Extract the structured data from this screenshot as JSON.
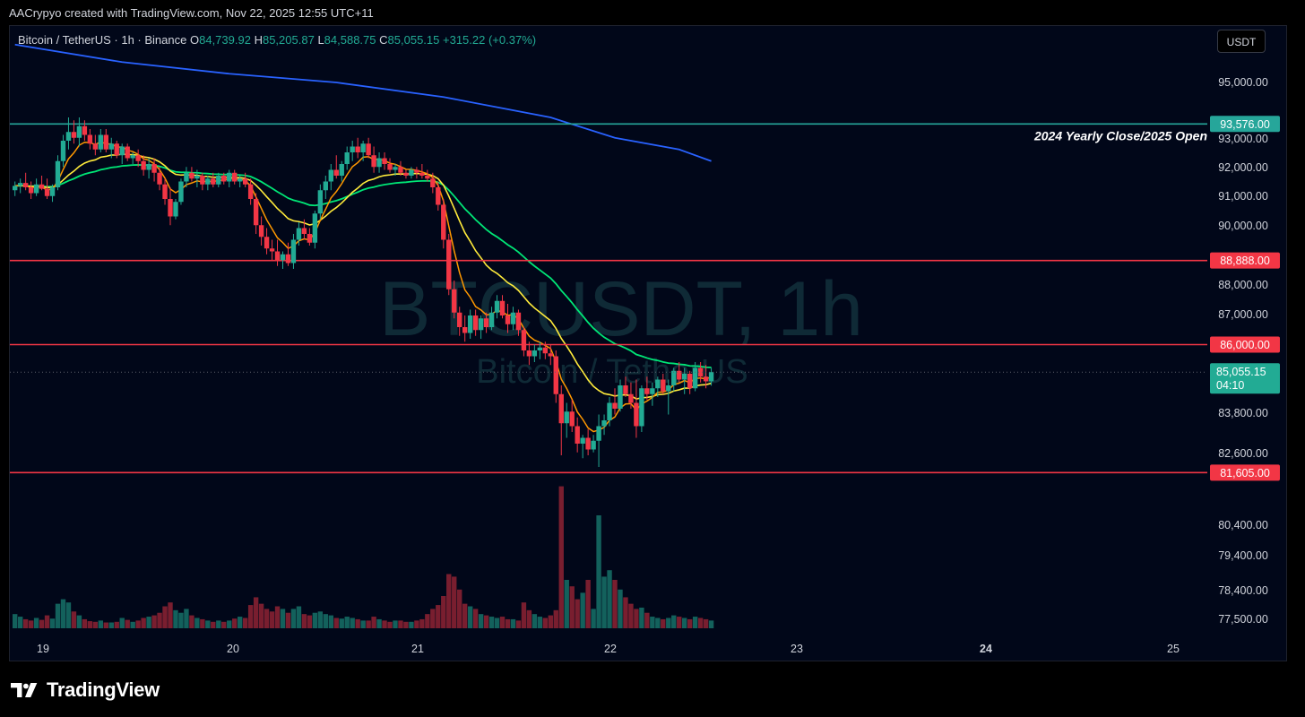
{
  "header": {
    "attribution": "AACrypyo created with TradingView.com, Nov 22, 2025 12:55 UTC+11"
  },
  "legend": {
    "symbol": "Bitcoin / TetherUS · 1h · Binance",
    "open_label": "O",
    "open": "84,739.92",
    "high_label": "H",
    "high": "85,205.87",
    "low_label": "L",
    "low": "84,588.75",
    "close_label": "C",
    "close": "85,055.15",
    "change": "+315.22 (+0.37%)"
  },
  "currency_button": "USDT",
  "watermark": {
    "main": "BTCUSDT, 1h",
    "sub": "Bitcoin / TetherUS"
  },
  "footer": {
    "brand": "TradingView",
    "logo_icon": "tradingview-logo-icon"
  },
  "colors": {
    "up": "#22ab94",
    "down": "#f23645",
    "level_line": "#f23645",
    "yearly_line": "#26a69a",
    "ema_fast": "#ff9800",
    "ema_mid": "#ffeb3b",
    "ema_slow": "#00e676",
    "ema_long": "#2962ff",
    "background": "#010719"
  },
  "chart_data": {
    "type": "candlestick",
    "symbol": "BTCUSDT",
    "interval": "1h",
    "x_ticks": [
      "19",
      "20",
      "21",
      "22",
      "23",
      "24",
      "25"
    ],
    "y_ticks": [
      "95,000.00",
      "93,000.00",
      "92,000.00",
      "91,000.00",
      "90,000.00",
      "88,000.00",
      "87,000.00",
      "83,800.00",
      "82,600.00",
      "80,400.00",
      "79,400.00",
      "78,400.00",
      "77,500.00"
    ],
    "ylim": [
      77000,
      96000
    ],
    "grid": false,
    "horizontal_levels": [
      {
        "value": 93576,
        "label": "93,576.00",
        "annotation": "2024 Yearly Close/2025 Open",
        "kind": "yearly"
      },
      {
        "value": 88888,
        "label": "88,888.00",
        "kind": "resistance"
      },
      {
        "value": 86000,
        "label": "86,000.00",
        "kind": "resistance"
      },
      {
        "value": 81605,
        "label": "81,605.00",
        "kind": "support"
      }
    ],
    "last_price": {
      "value": 85055.15,
      "label": "85,055.15",
      "countdown": "04:10"
    },
    "candles": [
      {
        "o": 91300,
        "h": 91600,
        "l": 91100,
        "c": 91450,
        "v": 22
      },
      {
        "o": 91450,
        "h": 91700,
        "l": 91200,
        "c": 91550,
        "v": 18
      },
      {
        "o": 91550,
        "h": 91900,
        "l": 91300,
        "c": 91400,
        "v": 14
      },
      {
        "o": 91400,
        "h": 91600,
        "l": 91000,
        "c": 91200,
        "v": 12
      },
      {
        "o": 91200,
        "h": 91700,
        "l": 91100,
        "c": 91500,
        "v": 16
      },
      {
        "o": 91500,
        "h": 91800,
        "l": 91300,
        "c": 91350,
        "v": 13
      },
      {
        "o": 91350,
        "h": 91700,
        "l": 91000,
        "c": 91100,
        "v": 20
      },
      {
        "o": 91100,
        "h": 91500,
        "l": 90900,
        "c": 91400,
        "v": 15
      },
      {
        "o": 91400,
        "h": 92500,
        "l": 91300,
        "c": 92300,
        "v": 38
      },
      {
        "o": 92300,
        "h": 93200,
        "l": 92100,
        "c": 93000,
        "v": 45
      },
      {
        "o": 93000,
        "h": 93800,
        "l": 92700,
        "c": 93300,
        "v": 40
      },
      {
        "o": 93300,
        "h": 93700,
        "l": 92900,
        "c": 93100,
        "v": 26
      },
      {
        "o": 93100,
        "h": 93800,
        "l": 92800,
        "c": 93500,
        "v": 20
      },
      {
        "o": 93500,
        "h": 93700,
        "l": 93000,
        "c": 93200,
        "v": 14
      },
      {
        "o": 93200,
        "h": 93400,
        "l": 92700,
        "c": 92900,
        "v": 11
      },
      {
        "o": 92900,
        "h": 93200,
        "l": 92500,
        "c": 92700,
        "v": 10
      },
      {
        "o": 92700,
        "h": 93400,
        "l": 92600,
        "c": 93200,
        "v": 12
      },
      {
        "o": 93200,
        "h": 93400,
        "l": 92600,
        "c": 92700,
        "v": 9
      },
      {
        "o": 92700,
        "h": 93100,
        "l": 92400,
        "c": 92900,
        "v": 9
      },
      {
        "o": 92900,
        "h": 93000,
        "l": 92400,
        "c": 92500,
        "v": 10
      },
      {
        "o": 92500,
        "h": 92900,
        "l": 92200,
        "c": 92800,
        "v": 16
      },
      {
        "o": 92800,
        "h": 92900,
        "l": 92300,
        "c": 92400,
        "v": 13
      },
      {
        "o": 92400,
        "h": 92600,
        "l": 92200,
        "c": 92500,
        "v": 10
      },
      {
        "o": 92500,
        "h": 92700,
        "l": 92100,
        "c": 92300,
        "v": 12
      },
      {
        "o": 92300,
        "h": 92500,
        "l": 91800,
        "c": 92000,
        "v": 16
      },
      {
        "o": 92000,
        "h": 92400,
        "l": 91700,
        "c": 92200,
        "v": 18
      },
      {
        "o": 92200,
        "h": 92400,
        "l": 91600,
        "c": 91900,
        "v": 20
      },
      {
        "o": 91900,
        "h": 92100,
        "l": 91300,
        "c": 91500,
        "v": 24
      },
      {
        "o": 91500,
        "h": 91700,
        "l": 90800,
        "c": 91000,
        "v": 34
      },
      {
        "o": 91000,
        "h": 91400,
        "l": 90100,
        "c": 90400,
        "v": 40
      },
      {
        "o": 90400,
        "h": 91000,
        "l": 90300,
        "c": 90900,
        "v": 28
      },
      {
        "o": 90900,
        "h": 91700,
        "l": 90800,
        "c": 91600,
        "v": 24
      },
      {
        "o": 91600,
        "h": 92100,
        "l": 91400,
        "c": 91900,
        "v": 30
      },
      {
        "o": 91900,
        "h": 92100,
        "l": 91600,
        "c": 91700,
        "v": 20
      },
      {
        "o": 91700,
        "h": 92000,
        "l": 91400,
        "c": 91800,
        "v": 16
      },
      {
        "o": 91800,
        "h": 91900,
        "l": 91300,
        "c": 91500,
        "v": 14
      },
      {
        "o": 91500,
        "h": 91800,
        "l": 91300,
        "c": 91700,
        "v": 12
      },
      {
        "o": 91700,
        "h": 91900,
        "l": 91400,
        "c": 91500,
        "v": 10
      },
      {
        "o": 91500,
        "h": 91900,
        "l": 91400,
        "c": 91800,
        "v": 12
      },
      {
        "o": 91800,
        "h": 91900,
        "l": 91500,
        "c": 91600,
        "v": 10
      },
      {
        "o": 91600,
        "h": 92000,
        "l": 91400,
        "c": 91900,
        "v": 12
      },
      {
        "o": 91900,
        "h": 92000,
        "l": 91500,
        "c": 91600,
        "v": 15
      },
      {
        "o": 91600,
        "h": 91800,
        "l": 91400,
        "c": 91700,
        "v": 18
      },
      {
        "o": 91700,
        "h": 91900,
        "l": 91400,
        "c": 91500,
        "v": 16
      },
      {
        "o": 91500,
        "h": 91700,
        "l": 90800,
        "c": 91000,
        "v": 36
      },
      {
        "o": 91000,
        "h": 91200,
        "l": 89800,
        "c": 90100,
        "v": 48
      },
      {
        "o": 90100,
        "h": 90400,
        "l": 89400,
        "c": 89700,
        "v": 38
      },
      {
        "o": 89700,
        "h": 90000,
        "l": 89100,
        "c": 89300,
        "v": 30
      },
      {
        "o": 89300,
        "h": 89600,
        "l": 88900,
        "c": 89200,
        "v": 26
      },
      {
        "o": 89200,
        "h": 89600,
        "l": 88700,
        "c": 88900,
        "v": 34
      },
      {
        "o": 88900,
        "h": 89200,
        "l": 88600,
        "c": 89100,
        "v": 30
      },
      {
        "o": 89100,
        "h": 89500,
        "l": 88700,
        "c": 88800,
        "v": 24
      },
      {
        "o": 88800,
        "h": 89800,
        "l": 88600,
        "c": 89600,
        "v": 30
      },
      {
        "o": 89600,
        "h": 90200,
        "l": 89400,
        "c": 90000,
        "v": 34
      },
      {
        "o": 90000,
        "h": 90300,
        "l": 89600,
        "c": 89800,
        "v": 22
      },
      {
        "o": 89800,
        "h": 90000,
        "l": 89400,
        "c": 89500,
        "v": 20
      },
      {
        "o": 89500,
        "h": 90600,
        "l": 89300,
        "c": 90500,
        "v": 24
      },
      {
        "o": 90500,
        "h": 91500,
        "l": 90300,
        "c": 91300,
        "v": 26
      },
      {
        "o": 91300,
        "h": 91800,
        "l": 91000,
        "c": 91600,
        "v": 22
      },
      {
        "o": 91600,
        "h": 92200,
        "l": 91300,
        "c": 92000,
        "v": 20
      },
      {
        "o": 92000,
        "h": 92500,
        "l": 91700,
        "c": 91800,
        "v": 16
      },
      {
        "o": 91800,
        "h": 92300,
        "l": 91600,
        "c": 92200,
        "v": 15
      },
      {
        "o": 92200,
        "h": 92800,
        "l": 92000,
        "c": 92600,
        "v": 18
      },
      {
        "o": 92600,
        "h": 93000,
        "l": 92300,
        "c": 92800,
        "v": 16
      },
      {
        "o": 92800,
        "h": 93100,
        "l": 92400,
        "c": 92600,
        "v": 14
      },
      {
        "o": 92600,
        "h": 93000,
        "l": 92300,
        "c": 92900,
        "v": 12
      },
      {
        "o": 92900,
        "h": 93100,
        "l": 92400,
        "c": 92500,
        "v": 12
      },
      {
        "o": 92500,
        "h": 92800,
        "l": 91900,
        "c": 92100,
        "v": 18
      },
      {
        "o": 92100,
        "h": 92600,
        "l": 91900,
        "c": 92400,
        "v": 14
      },
      {
        "o": 92400,
        "h": 92600,
        "l": 92000,
        "c": 92200,
        "v": 12
      },
      {
        "o": 92200,
        "h": 92400,
        "l": 91900,
        "c": 92000,
        "v": 10
      },
      {
        "o": 92000,
        "h": 92200,
        "l": 91800,
        "c": 92100,
        "v": 12
      },
      {
        "o": 92100,
        "h": 92300,
        "l": 91800,
        "c": 91900,
        "v": 12
      },
      {
        "o": 91900,
        "h": 92000,
        "l": 91700,
        "c": 91800,
        "v": 10
      },
      {
        "o": 91800,
        "h": 92100,
        "l": 91700,
        "c": 92000,
        "v": 10
      },
      {
        "o": 92000,
        "h": 92100,
        "l": 91700,
        "c": 91900,
        "v": 12
      },
      {
        "o": 91900,
        "h": 92200,
        "l": 91700,
        "c": 91800,
        "v": 14
      },
      {
        "o": 91800,
        "h": 92000,
        "l": 91600,
        "c": 91700,
        "v": 22
      },
      {
        "o": 91700,
        "h": 91900,
        "l": 91200,
        "c": 91400,
        "v": 30
      },
      {
        "o": 91400,
        "h": 91600,
        "l": 90600,
        "c": 90800,
        "v": 36
      },
      {
        "o": 90800,
        "h": 91000,
        "l": 89300,
        "c": 89600,
        "v": 50
      },
      {
        "o": 89600,
        "h": 89800,
        "l": 87700,
        "c": 87900,
        "v": 84
      },
      {
        "o": 87900,
        "h": 88200,
        "l": 86900,
        "c": 87100,
        "v": 80
      },
      {
        "o": 87100,
        "h": 87300,
        "l": 86300,
        "c": 86600,
        "v": 60
      },
      {
        "o": 86600,
        "h": 87000,
        "l": 86100,
        "c": 86400,
        "v": 38
      },
      {
        "o": 86400,
        "h": 87200,
        "l": 86200,
        "c": 87000,
        "v": 34
      },
      {
        "o": 87000,
        "h": 87200,
        "l": 86300,
        "c": 86500,
        "v": 30
      },
      {
        "o": 86500,
        "h": 87000,
        "l": 86200,
        "c": 86900,
        "v": 22
      },
      {
        "o": 86900,
        "h": 87100,
        "l": 86400,
        "c": 86600,
        "v": 20
      },
      {
        "o": 86600,
        "h": 87300,
        "l": 86500,
        "c": 87100,
        "v": 18
      },
      {
        "o": 87100,
        "h": 87700,
        "l": 86900,
        "c": 87500,
        "v": 16
      },
      {
        "o": 87500,
        "h": 87700,
        "l": 86900,
        "c": 87000,
        "v": 18
      },
      {
        "o": 87000,
        "h": 87400,
        "l": 86400,
        "c": 86700,
        "v": 14
      },
      {
        "o": 86700,
        "h": 87300,
        "l": 86500,
        "c": 87100,
        "v": 14
      },
      {
        "o": 87100,
        "h": 87200,
        "l": 86300,
        "c": 86500,
        "v": 12
      },
      {
        "o": 86500,
        "h": 86600,
        "l": 85600,
        "c": 85800,
        "v": 40
      },
      {
        "o": 85800,
        "h": 86100,
        "l": 85300,
        "c": 85600,
        "v": 28
      },
      {
        "o": 85600,
        "h": 86000,
        "l": 85400,
        "c": 85800,
        "v": 22
      },
      {
        "o": 85800,
        "h": 86100,
        "l": 85500,
        "c": 85900,
        "v": 18
      },
      {
        "o": 85900,
        "h": 86100,
        "l": 85500,
        "c": 85700,
        "v": 16
      },
      {
        "o": 85700,
        "h": 86000,
        "l": 85300,
        "c": 85600,
        "v": 20
      },
      {
        "o": 85600,
        "h": 85800,
        "l": 84000,
        "c": 84300,
        "v": 28
      },
      {
        "o": 84300,
        "h": 84600,
        "l": 82200,
        "c": 83300,
        "v": 220
      },
      {
        "o": 83300,
        "h": 84000,
        "l": 82800,
        "c": 83700,
        "v": 75
      },
      {
        "o": 83700,
        "h": 84100,
        "l": 83000,
        "c": 83200,
        "v": 65
      },
      {
        "o": 83200,
        "h": 83500,
        "l": 82300,
        "c": 82600,
        "v": 45
      },
      {
        "o": 82600,
        "h": 82900,
        "l": 82100,
        "c": 82800,
        "v": 55
      },
      {
        "o": 82800,
        "h": 83100,
        "l": 82200,
        "c": 82400,
        "v": 75
      },
      {
        "o": 82400,
        "h": 82900,
        "l": 82300,
        "c": 82700,
        "v": 30
      },
      {
        "o": 82700,
        "h": 83600,
        "l": 81800,
        "c": 83200,
        "v": 175
      },
      {
        "o": 83200,
        "h": 83600,
        "l": 82900,
        "c": 83400,
        "v": 80
      },
      {
        "o": 83400,
        "h": 84200,
        "l": 83200,
        "c": 84000,
        "v": 90
      },
      {
        "o": 84000,
        "h": 84500,
        "l": 83600,
        "c": 83800,
        "v": 75
      },
      {
        "o": 83800,
        "h": 84800,
        "l": 83700,
        "c": 84600,
        "v": 60
      },
      {
        "o": 84600,
        "h": 84900,
        "l": 84200,
        "c": 84300,
        "v": 48
      },
      {
        "o": 84300,
        "h": 84700,
        "l": 83800,
        "c": 84000,
        "v": 38
      },
      {
        "o": 84000,
        "h": 84800,
        "l": 82800,
        "c": 83200,
        "v": 30
      },
      {
        "o": 83200,
        "h": 84600,
        "l": 83000,
        "c": 84500,
        "v": 32
      },
      {
        "o": 84500,
        "h": 84900,
        "l": 84100,
        "c": 84300,
        "v": 24
      },
      {
        "o": 84300,
        "h": 84700,
        "l": 83900,
        "c": 84500,
        "v": 18
      },
      {
        "o": 84500,
        "h": 84900,
        "l": 84200,
        "c": 84800,
        "v": 16
      },
      {
        "o": 84800,
        "h": 85000,
        "l": 84300,
        "c": 84400,
        "v": 14
      },
      {
        "o": 84400,
        "h": 84800,
        "l": 83600,
        "c": 84600,
        "v": 16
      },
      {
        "o": 84600,
        "h": 85200,
        "l": 84400,
        "c": 85100,
        "v": 20
      },
      {
        "o": 85100,
        "h": 85400,
        "l": 84700,
        "c": 84800,
        "v": 18
      },
      {
        "o": 84800,
        "h": 85200,
        "l": 84300,
        "c": 85000,
        "v": 16
      },
      {
        "o": 85000,
        "h": 85100,
        "l": 84300,
        "c": 84500,
        "v": 14
      },
      {
        "o": 84500,
        "h": 85400,
        "l": 84400,
        "c": 85200,
        "v": 18
      },
      {
        "o": 85200,
        "h": 85400,
        "l": 84700,
        "c": 84900,
        "v": 16
      },
      {
        "o": 84900,
        "h": 85300,
        "l": 84500,
        "c": 84740,
        "v": 14
      },
      {
        "o": 84740,
        "h": 85206,
        "l": 84589,
        "c": 85055,
        "v": 12
      }
    ],
    "ema_long": [
      [
        0,
        96300
      ],
      [
        20,
        95700
      ],
      [
        40,
        95300
      ],
      [
        60,
        95000
      ],
      [
        80,
        94500
      ],
      [
        100,
        93800
      ],
      [
        112,
        93100
      ],
      [
        124,
        92700
      ],
      [
        130,
        92300
      ]
    ]
  }
}
